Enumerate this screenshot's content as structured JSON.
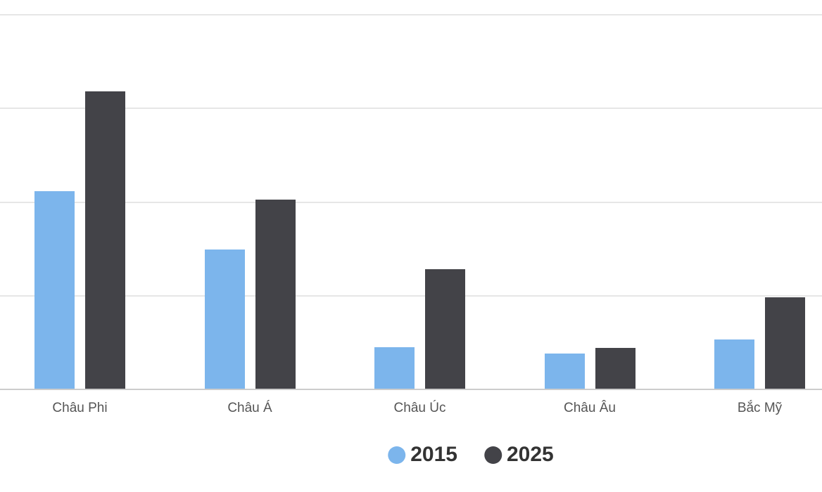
{
  "chart_data": {
    "type": "bar",
    "title": "",
    "xlabel": "",
    "ylabel": "",
    "categories": [
      "Châu Phi",
      "Châu Á",
      "Châu Úc",
      "Châu Âu",
      "Bắc Mỹ"
    ],
    "series": [
      {
        "name": "2015",
        "color": "#7cb5ec",
        "values": [
          2.12,
          1.49,
          0.45,
          0.38,
          0.53
        ]
      },
      {
        "name": "2025",
        "color": "#434348",
        "values": [
          3.18,
          2.03,
          1.28,
          0.44,
          0.98
        ]
      }
    ],
    "ylim": [
      0,
      4
    ],
    "y_gridline_step": 1,
    "y_tick_labels_visible": false,
    "grid": true,
    "legend_position": "bottom"
  },
  "colors": {
    "background": "#ffffff",
    "gridline": "#e6e6e6",
    "axis_line": "#cccccc",
    "x_label_text": "#555555",
    "legend_text": "#333333"
  }
}
